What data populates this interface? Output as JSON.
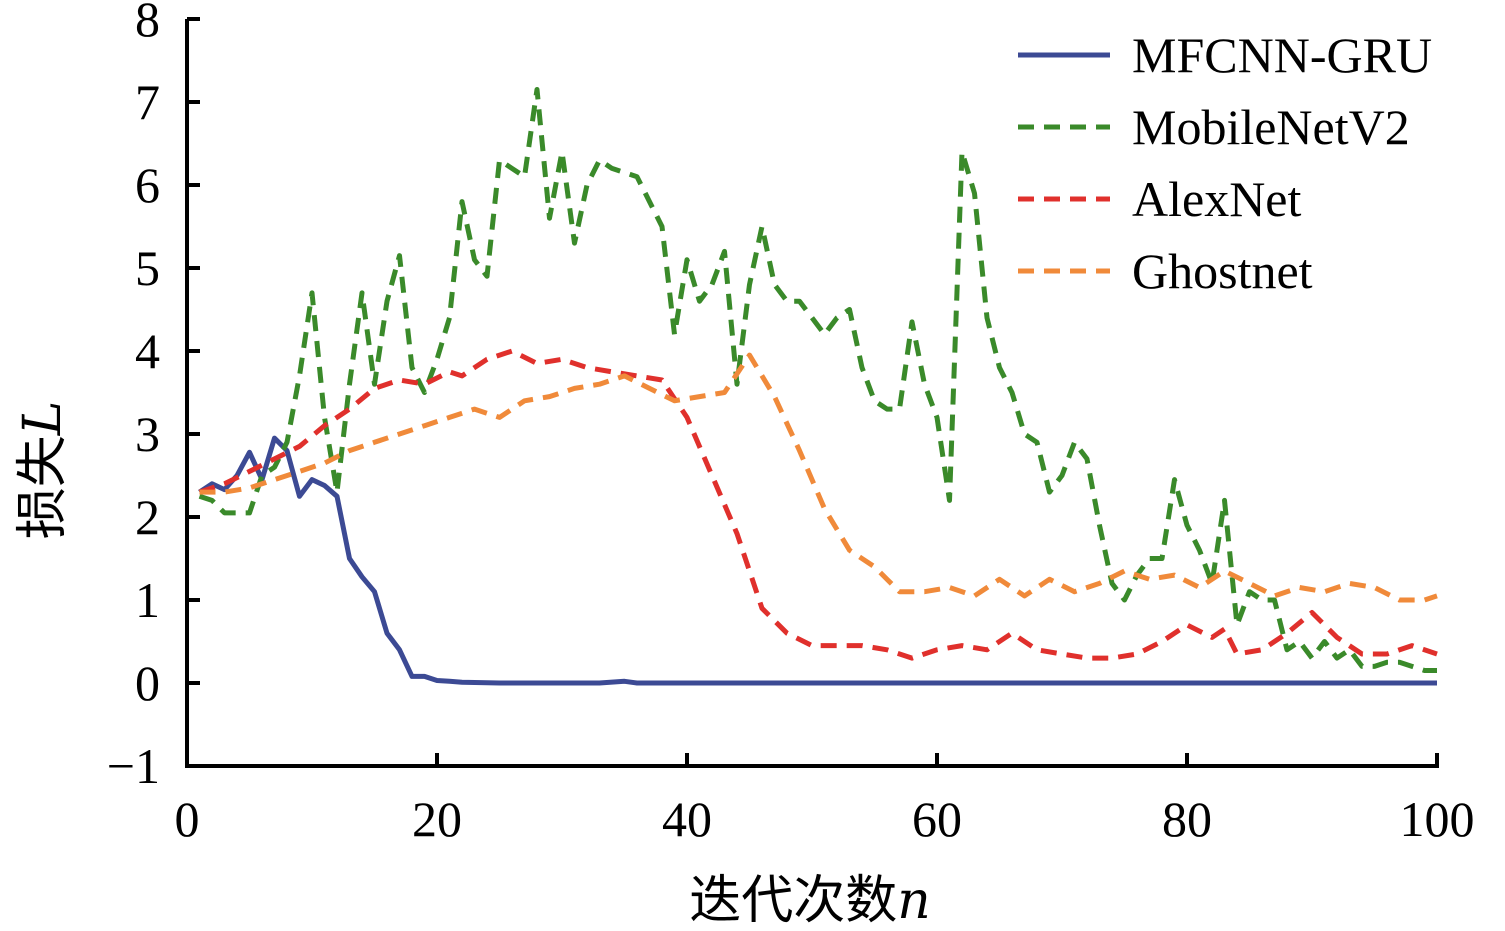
{
  "chart_data": {
    "type": "line",
    "title": "",
    "xlabel": "迭代次数",
    "xlabel_var": "n",
    "ylabel": "损失",
    "ylabel_var": "L",
    "xlim": [
      0,
      100
    ],
    "ylim": [
      -1,
      8
    ],
    "xticks": [
      0,
      20,
      40,
      60,
      80,
      100
    ],
    "xtick_labels": [
      "0",
      "20",
      "40",
      "60",
      "80",
      "100"
    ],
    "yticks": [
      -1,
      0,
      1,
      2,
      3,
      4,
      5,
      6,
      7,
      8
    ],
    "ytick_labels": [
      "−1",
      "0",
      "1",
      "2",
      "3",
      "4",
      "5",
      "6",
      "7",
      "8"
    ],
    "grid": false,
    "legend_position": "top-right",
    "series": [
      {
        "name": "MFCNN-GRU",
        "color": "#3c4a94",
        "dash": "solid",
        "x": [
          1,
          2,
          3,
          4,
          5,
          6,
          7,
          8,
          9,
          10,
          11,
          12,
          13,
          14,
          15,
          16,
          17,
          18,
          19,
          20,
          21,
          22,
          25,
          30,
          33,
          35,
          36,
          40,
          50,
          60,
          70,
          80,
          90,
          100
        ],
        "y": [
          2.3,
          2.4,
          2.33,
          2.5,
          2.78,
          2.45,
          2.95,
          2.8,
          2.25,
          2.45,
          2.38,
          2.25,
          1.5,
          1.28,
          1.1,
          0.6,
          0.4,
          0.08,
          0.08,
          0.03,
          0.02,
          0.01,
          0.0,
          0.0,
          0.0,
          0.02,
          0.0,
          0.0,
          0.0,
          0.0,
          0.0,
          0.0,
          0.0,
          0.0
        ]
      },
      {
        "name": "MobileNetV2",
        "color": "#3a8a2a",
        "dash": "dashed",
        "x": [
          1,
          2,
          3,
          4,
          5,
          6,
          7,
          8,
          9,
          10,
          11,
          12,
          13,
          14,
          15,
          16,
          17,
          18,
          19,
          20,
          21,
          22,
          23,
          24,
          25,
          26,
          27,
          28,
          29,
          30,
          31,
          32,
          33,
          34,
          35,
          36,
          37,
          38,
          39,
          40,
          41,
          42,
          43,
          44,
          45,
          46,
          47,
          48,
          49,
          50,
          51,
          52,
          53,
          54,
          55,
          56,
          57,
          58,
          59,
          60,
          61,
          62,
          63,
          64,
          65,
          66,
          67,
          68,
          69,
          70,
          71,
          72,
          73,
          74,
          75,
          76,
          77,
          78,
          79,
          80,
          81,
          82,
          83,
          84,
          85,
          86,
          87,
          88,
          89,
          90,
          91,
          92,
          93,
          94,
          95,
          96,
          97,
          98,
          99,
          100
        ],
        "y": [
          2.25,
          2.2,
          2.05,
          2.05,
          2.05,
          2.5,
          2.6,
          2.9,
          3.7,
          4.7,
          3.2,
          2.3,
          3.6,
          4.7,
          3.6,
          4.6,
          5.15,
          3.8,
          3.5,
          3.9,
          4.4,
          5.8,
          5.1,
          4.9,
          6.3,
          6.2,
          6.1,
          7.15,
          5.6,
          6.4,
          5.3,
          6.0,
          6.3,
          6.2,
          6.15,
          6.1,
          5.8,
          5.5,
          4.2,
          5.1,
          4.6,
          4.8,
          5.2,
          3.6,
          4.8,
          5.5,
          4.8,
          4.6,
          4.6,
          4.4,
          4.2,
          4.4,
          4.5,
          3.8,
          3.4,
          3.3,
          3.3,
          4.35,
          3.6,
          3.2,
          2.2,
          6.4,
          5.9,
          4.4,
          3.8,
          3.5,
          3.0,
          2.9,
          2.3,
          2.5,
          2.9,
          2.7,
          1.9,
          1.2,
          1.0,
          1.3,
          1.5,
          1.5,
          2.45,
          1.9,
          1.6,
          1.2,
          2.2,
          0.7,
          1.1,
          1.0,
          1.0,
          0.4,
          0.5,
          0.3,
          0.5,
          0.3,
          0.4,
          0.2,
          0.2,
          0.25,
          0.25,
          0.2,
          0.15,
          0.15
        ]
      },
      {
        "name": "AlexNet",
        "color": "#e0302c",
        "dash": "dashed",
        "x": [
          1,
          3,
          5,
          7,
          9,
          11,
          13,
          15,
          17,
          19,
          21,
          22,
          24,
          26,
          28,
          30,
          32,
          34,
          36,
          38,
          40,
          42,
          44,
          46,
          48,
          50,
          52,
          54,
          56,
          58,
          60,
          62,
          64,
          66,
          68,
          70,
          72,
          74,
          76,
          78,
          80,
          82,
          83,
          84,
          86,
          88,
          90,
          92,
          94,
          96,
          98,
          100
        ],
        "y": [
          2.3,
          2.4,
          2.55,
          2.7,
          2.85,
          3.1,
          3.3,
          3.55,
          3.65,
          3.6,
          3.75,
          3.7,
          3.9,
          4.0,
          3.85,
          3.9,
          3.8,
          3.75,
          3.7,
          3.65,
          3.2,
          2.5,
          1.8,
          0.9,
          0.6,
          0.45,
          0.45,
          0.45,
          0.4,
          0.3,
          0.4,
          0.45,
          0.4,
          0.6,
          0.4,
          0.35,
          0.3,
          0.3,
          0.35,
          0.5,
          0.7,
          0.55,
          0.65,
          0.35,
          0.4,
          0.6,
          0.85,
          0.55,
          0.35,
          0.35,
          0.45,
          0.35
        ]
      },
      {
        "name": "Ghostnet",
        "color": "#f08a3a",
        "dash": "dashed",
        "x": [
          1,
          3,
          5,
          7,
          9,
          11,
          13,
          15,
          17,
          19,
          21,
          23,
          25,
          27,
          29,
          31,
          33,
          35,
          37,
          39,
          41,
          43,
          45,
          47,
          49,
          51,
          53,
          55,
          57,
          59,
          61,
          63,
          65,
          67,
          69,
          71,
          73,
          75,
          77,
          79,
          81,
          83,
          85,
          87,
          89,
          91,
          93,
          95,
          97,
          99,
          100
        ],
        "y": [
          2.3,
          2.3,
          2.35,
          2.45,
          2.55,
          2.65,
          2.8,
          2.9,
          3.0,
          3.1,
          3.2,
          3.3,
          3.2,
          3.4,
          3.45,
          3.55,
          3.6,
          3.7,
          3.55,
          3.4,
          3.45,
          3.5,
          3.95,
          3.45,
          2.8,
          2.1,
          1.6,
          1.4,
          1.1,
          1.1,
          1.15,
          1.05,
          1.25,
          1.05,
          1.25,
          1.1,
          1.2,
          1.35,
          1.25,
          1.3,
          1.15,
          1.35,
          1.2,
          1.05,
          1.15,
          1.1,
          1.2,
          1.15,
          1.0,
          1.0,
          1.05
        ]
      }
    ]
  }
}
